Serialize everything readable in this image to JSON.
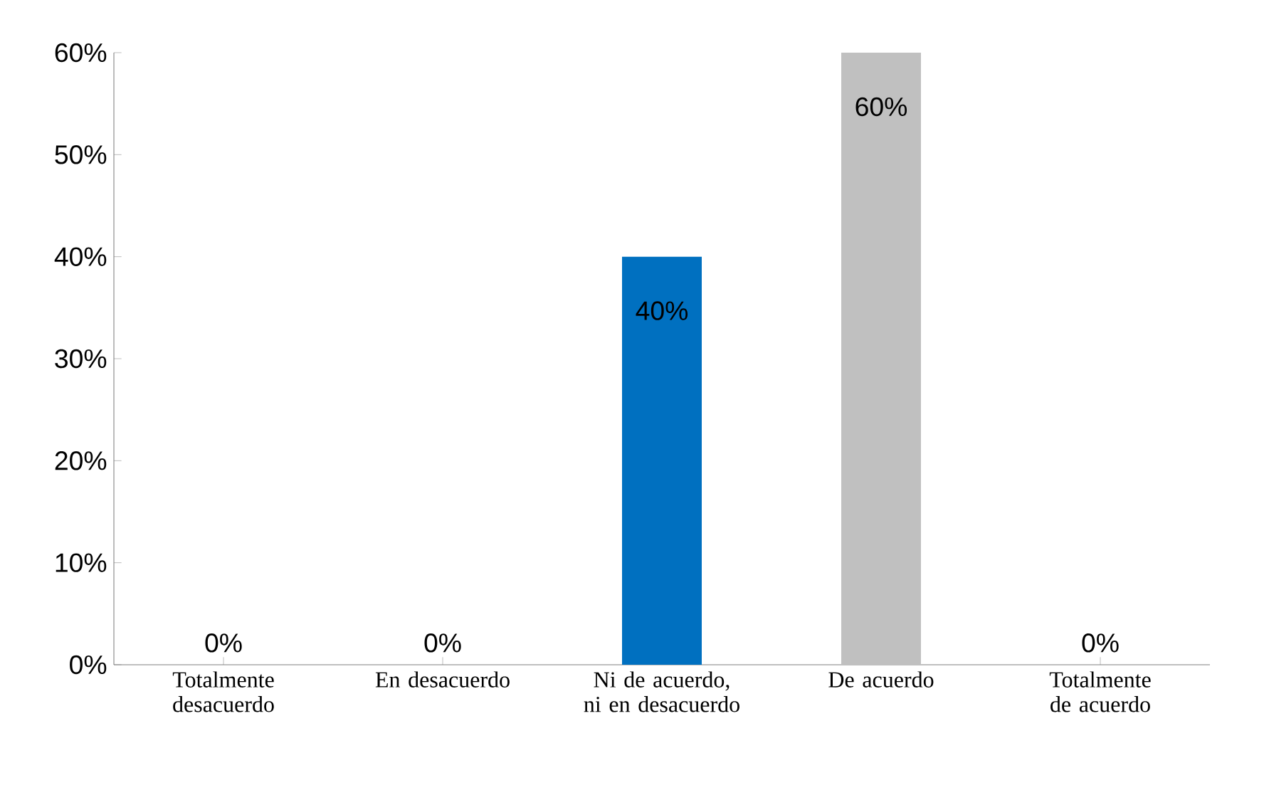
{
  "chart_data": {
    "type": "bar",
    "categories": [
      "Totalmente desacuerdo",
      "En desacuerdo",
      "Ni de acuerdo, ni en desacuerdo",
      "De acuerdo",
      "Totalmente de acuerdo"
    ],
    "values": [
      0,
      0,
      40,
      60,
      0
    ],
    "value_labels": [
      "0%",
      "0%",
      "40%",
      "60%",
      "0%"
    ],
    "colors": [
      "#c0c0c0",
      "#c0c0c0",
      "#0070c0",
      "#c0c0c0",
      "#c0c0c0"
    ],
    "ylim": [
      0,
      60
    ],
    "yticks": [
      {
        "value": 0,
        "label": "0%"
      },
      {
        "value": 10,
        "label": "10%"
      },
      {
        "value": 20,
        "label": "20%"
      },
      {
        "value": 30,
        "label": "30%"
      },
      {
        "value": 40,
        "label": "40%"
      },
      {
        "value": 50,
        "label": "50%"
      },
      {
        "value": 60,
        "label": "60%"
      }
    ],
    "grid": false
  }
}
